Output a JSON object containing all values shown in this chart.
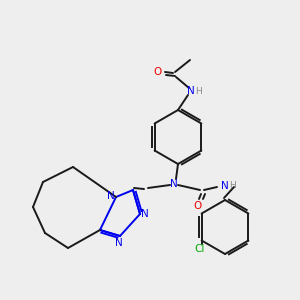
{
  "bg_color": "#eeeeee",
  "C": "#1a1a1a",
  "N": "#0000ee",
  "O": "#ee0000",
  "Cl": "#00aa00",
  "H": "#888888",
  "lw": 1.4,
  "lw2": 1.4
}
